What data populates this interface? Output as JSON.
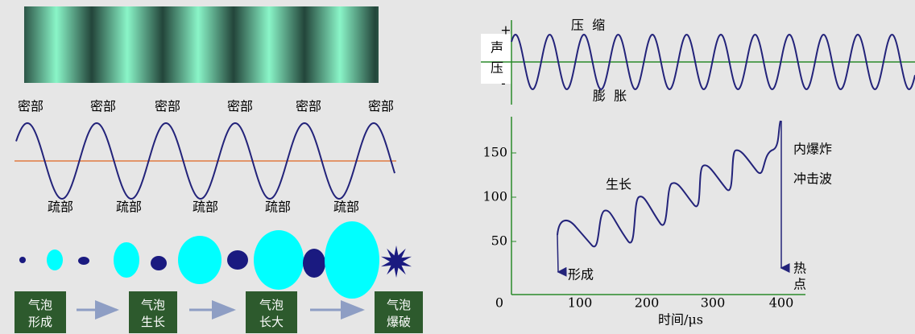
{
  "left": {
    "dense_labels": [
      "密部",
      "密部",
      "密部",
      "密部",
      "密部",
      "密部"
    ],
    "sparse_labels": [
      "疏部",
      "疏部",
      "疏部",
      "疏部",
      "疏部"
    ],
    "stages": [
      [
        "气泡",
        "形成"
      ],
      [
        "气泡",
        "生长"
      ],
      [
        "气泡",
        "长大"
      ],
      [
        "气泡",
        "爆破"
      ]
    ]
  },
  "right": {
    "top": {
      "compression": "压  缩",
      "expansion": "膨  胀",
      "plus": "+",
      "axis_label": [
        "声",
        "压"
      ],
      "minus": "-"
    },
    "bottom": {
      "x_ticks": [
        "0",
        "100",
        "200",
        "300",
        "400"
      ],
      "y_ticks": [
        "50",
        "100",
        "150"
      ],
      "x_label": "时间/μs",
      "annotations": {
        "formation": "形成",
        "growth": "生长",
        "implosion": "内爆炸",
        "shockwave": "冲击波",
        "hot": "热",
        "spot": "点"
      }
    }
  }
}
